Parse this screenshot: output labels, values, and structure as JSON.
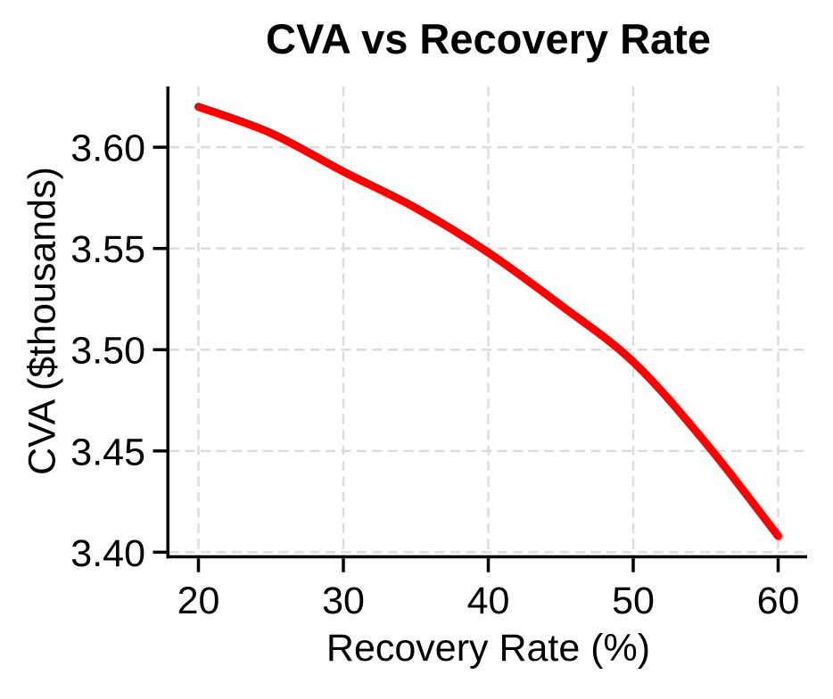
{
  "figure": {
    "background": "#ffffff"
  },
  "chart_data": {
    "type": "line",
    "title": "CVA vs Recovery Rate",
    "xlabel": "Recovery Rate (%)",
    "ylabel": "CVA ($thousands)",
    "x": [
      20,
      25,
      30,
      35,
      40,
      45,
      50,
      55,
      60
    ],
    "y": [
      3.62,
      3.607,
      3.588,
      3.57,
      3.548,
      3.522,
      3.494,
      3.454,
      3.408
    ],
    "xticks": [
      20,
      30,
      40,
      50,
      60
    ],
    "xtick_labels": [
      "20",
      "30",
      "40",
      "50",
      "60"
    ],
    "yticks": [
      3.4,
      3.45,
      3.5,
      3.55,
      3.6
    ],
    "ytick_labels": [
      "3.40",
      "3.45",
      "3.50",
      "3.55",
      "3.60"
    ],
    "xlim": [
      18,
      62
    ],
    "ylim": [
      3.3985,
      3.63
    ],
    "grid": true,
    "grid_style": "dashed",
    "legend_position": "none",
    "colors": {
      "line": "#ff0000",
      "grid": "#dbdbdb",
      "axis": "#000000",
      "text": "#000000"
    },
    "line_width": 9
  }
}
